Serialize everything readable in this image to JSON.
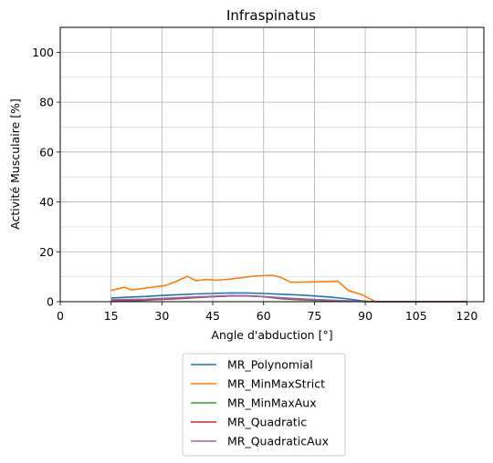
{
  "chart_data": {
    "type": "line",
    "title": "Infraspinatus",
    "xlabel": "Angle d'abduction [°]",
    "ylabel": "Activité Musculaire [%]",
    "xlim": [
      0,
      125
    ],
    "ylim": [
      0,
      110
    ],
    "xticks": [
      0,
      15,
      30,
      45,
      60,
      75,
      90,
      105,
      120
    ],
    "yticks": [
      0,
      20,
      40,
      60,
      80,
      100
    ],
    "grid": true,
    "minor_grid_y": true,
    "legend_position": "below",
    "series": [
      {
        "name": "MR_Polynomial",
        "color": "#1f77b4",
        "x": [
          15,
          20,
          25,
          30,
          35,
          40,
          45,
          50,
          55,
          60,
          65,
          70,
          75,
          80,
          85,
          90,
          95,
          100,
          105,
          110,
          115,
          120
        ],
        "y": [
          1.5,
          1.8,
          2.1,
          2.5,
          2.8,
          3.1,
          3.3,
          3.5,
          3.5,
          3.3,
          3.0,
          2.7,
          2.3,
          1.8,
          1.1,
          0.2,
          0,
          0,
          0,
          0,
          0,
          0
        ]
      },
      {
        "name": "MR_MinMaxStrict",
        "color": "#ff7f0e",
        "x": [
          15,
          19,
          21,
          25,
          31,
          34,
          37.5,
          40,
          43,
          46,
          49,
          52,
          56,
          59,
          62.5,
          65,
          68,
          74,
          82,
          85,
          89,
          91,
          93,
          95,
          100,
          105,
          110,
          115,
          120
        ],
        "y": [
          4.5,
          5.8,
          4.7,
          5.4,
          6.5,
          8.0,
          10.2,
          8.4,
          8.9,
          8.6,
          8.9,
          9.4,
          10.1,
          10.4,
          10.6,
          9.8,
          7.8,
          7.9,
          8.2,
          4.5,
          2.8,
          1.4,
          0.1,
          0,
          0,
          0,
          0,
          0,
          0
        ]
      },
      {
        "name": "MR_MinMaxAux",
        "color": "#2ca02c",
        "x": [
          15,
          20,
          25,
          30,
          35,
          40,
          45,
          50,
          55,
          60,
          65,
          70,
          75,
          80,
          85,
          90,
          95,
          100,
          105,
          110,
          115,
          120
        ],
        "y": [
          0.3,
          0.4,
          0.6,
          0.9,
          1.2,
          1.6,
          2.0,
          2.3,
          2.3,
          2.0,
          1.2,
          0.8,
          0.6,
          0.4,
          0.2,
          0.05,
          0,
          0,
          0,
          0,
          0,
          0
        ]
      },
      {
        "name": "MR_Quadratic",
        "color": "#d62728",
        "x": [
          15,
          20,
          25,
          30,
          35,
          40,
          45,
          50,
          55,
          60,
          65,
          70,
          75,
          80,
          85,
          90,
          95,
          100,
          105,
          110,
          115,
          120
        ],
        "y": [
          0.5,
          0.6,
          0.7,
          1.0,
          1.3,
          1.7,
          2.0,
          2.3,
          2.3,
          2.0,
          1.4,
          1.0,
          0.8,
          0.5,
          0.3,
          0.1,
          0,
          0,
          0,
          0,
          0,
          0
        ]
      },
      {
        "name": "MR_QuadraticAux",
        "color": "#9467bd",
        "x": [
          15,
          20,
          25,
          30,
          35,
          40,
          45,
          50,
          55,
          60,
          65,
          70,
          75,
          80,
          85,
          90,
          95,
          100,
          105,
          110,
          115,
          120
        ],
        "y": [
          0.8,
          0.9,
          1.0,
          1.3,
          1.6,
          1.9,
          2.2,
          2.4,
          2.4,
          2.1,
          1.6,
          1.2,
          0.9,
          0.6,
          0.3,
          0.1,
          0,
          0,
          0,
          0,
          0,
          0
        ]
      }
    ]
  }
}
